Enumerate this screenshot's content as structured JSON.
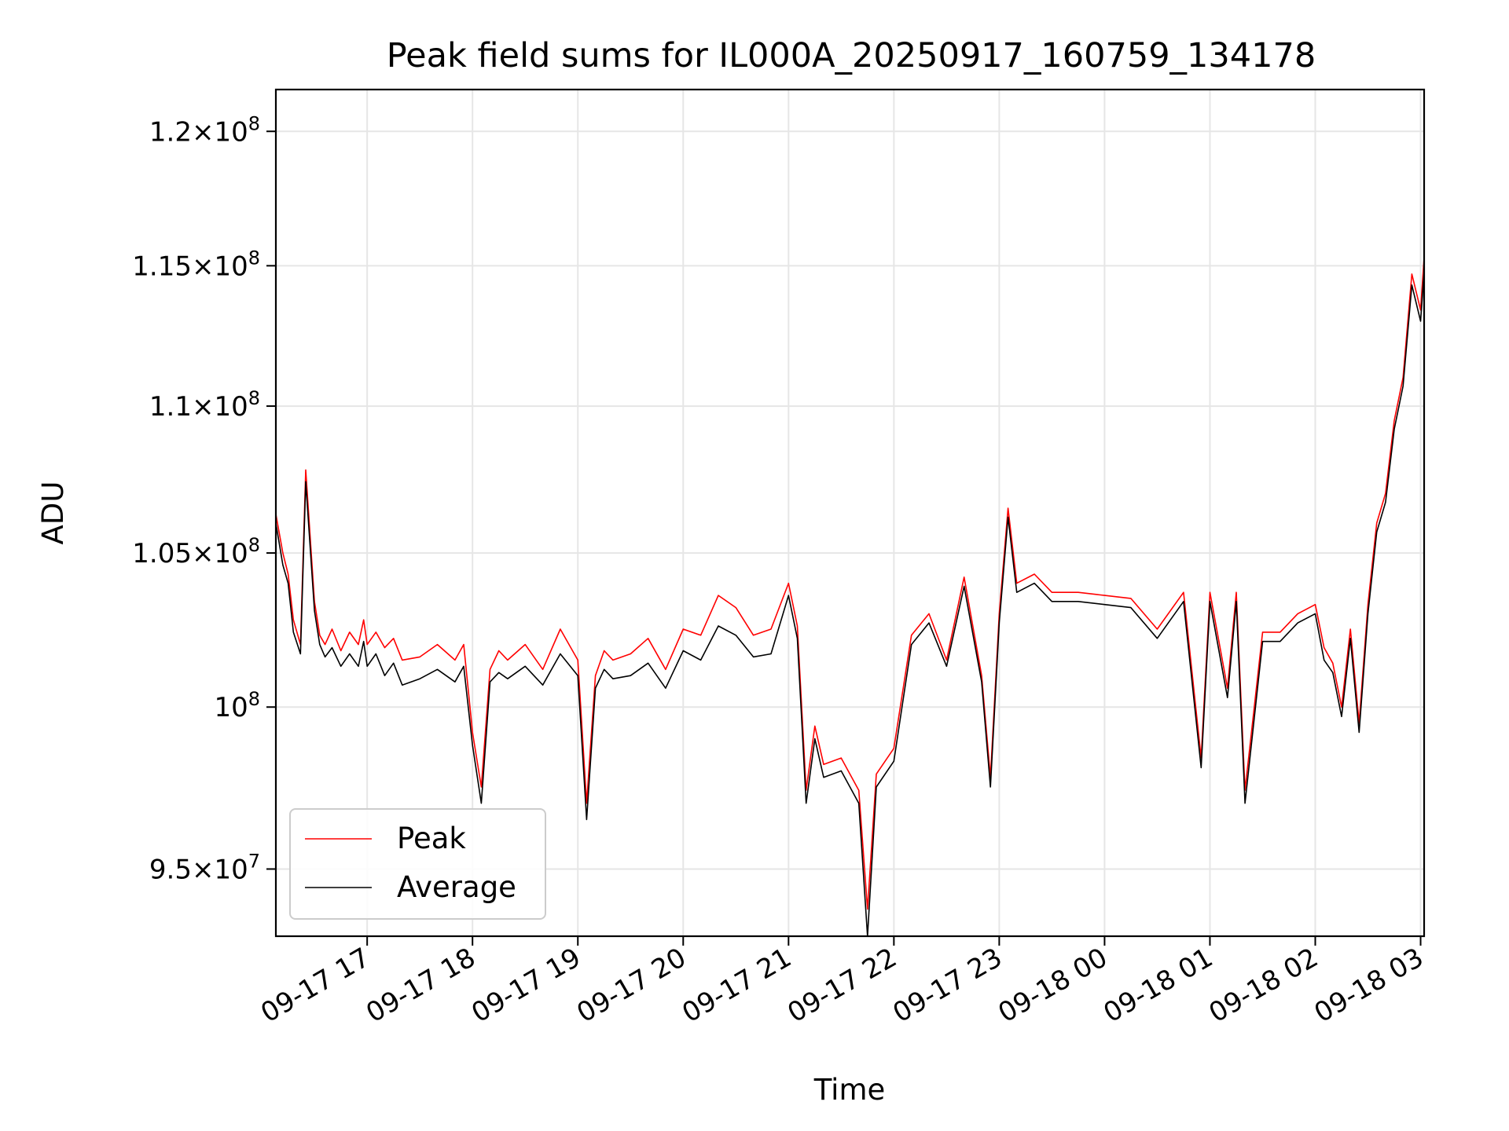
{
  "chart_data": {
    "type": "line",
    "title": "Peak field sums for IL000A_20250917_160759_134178",
    "xlabel": "Time",
    "ylabel": "ADU",
    "yscale": "log",
    "xlim": [
      "2025-09-17 16:08",
      "2025-09-18 03:02"
    ],
    "ylim": [
      93000000,
      121600000
    ],
    "grid": true,
    "legend_position": "lower-left",
    "x_ticks": [
      {
        "t": "2025-09-17 17:00",
        "label": "09-17 17"
      },
      {
        "t": "2025-09-17 18:00",
        "label": "09-17 18"
      },
      {
        "t": "2025-09-17 19:00",
        "label": "09-17 19"
      },
      {
        "t": "2025-09-17 20:00",
        "label": "09-17 20"
      },
      {
        "t": "2025-09-17 21:00",
        "label": "09-17 21"
      },
      {
        "t": "2025-09-17 22:00",
        "label": "09-17 22"
      },
      {
        "t": "2025-09-17 23:00",
        "label": "09-17 23"
      },
      {
        "t": "2025-09-18 00:00",
        "label": "09-18 00"
      },
      {
        "t": "2025-09-18 01:00",
        "label": "09-18 01"
      },
      {
        "t": "2025-09-18 02:00",
        "label": "09-18 02"
      },
      {
        "t": "2025-09-18 03:00",
        "label": "09-18 03"
      }
    ],
    "y_ticks": [
      {
        "value": 95000000,
        "mant": "9.5",
        "exp": "7"
      },
      {
        "value": 100000000,
        "mant": "",
        "exp": "8"
      },
      {
        "value": 105000000,
        "mant": "1.05",
        "exp": "8"
      },
      {
        "value": 110000000,
        "mant": "1.1",
        "exp": "8"
      },
      {
        "value": 115000000,
        "mant": "1.15",
        "exp": "8"
      },
      {
        "value": 120000000,
        "mant": "1.2",
        "exp": "8"
      }
    ],
    "series": [
      {
        "name": "Peak",
        "color": "#ff0000",
        "x": [
          "2025-09-17 16:08",
          "2025-09-17 16:12",
          "2025-09-17 16:15",
          "2025-09-17 16:18",
          "2025-09-17 16:22",
          "2025-09-17 16:25",
          "2025-09-17 16:30",
          "2025-09-17 16:33",
          "2025-09-17 16:36",
          "2025-09-17 16:40",
          "2025-09-17 16:45",
          "2025-09-17 16:50",
          "2025-09-17 16:55",
          "2025-09-17 16:58",
          "2025-09-17 17:00",
          "2025-09-17 17:05",
          "2025-09-17 17:10",
          "2025-09-17 17:15",
          "2025-09-17 17:20",
          "2025-09-17 17:30",
          "2025-09-17 17:40",
          "2025-09-17 17:50",
          "2025-09-17 17:55",
          "2025-09-17 18:00",
          "2025-09-17 18:05",
          "2025-09-17 18:10",
          "2025-09-17 18:15",
          "2025-09-17 18:20",
          "2025-09-17 18:30",
          "2025-09-17 18:40",
          "2025-09-17 18:50",
          "2025-09-17 19:00",
          "2025-09-17 19:05",
          "2025-09-17 19:10",
          "2025-09-17 19:15",
          "2025-09-17 19:20",
          "2025-09-17 19:30",
          "2025-09-17 19:40",
          "2025-09-17 19:50",
          "2025-09-17 20:00",
          "2025-09-17 20:10",
          "2025-09-17 20:20",
          "2025-09-17 20:30",
          "2025-09-17 20:40",
          "2025-09-17 20:50",
          "2025-09-17 21:00",
          "2025-09-17 21:05",
          "2025-09-17 21:10",
          "2025-09-17 21:15",
          "2025-09-17 21:20",
          "2025-09-17 21:30",
          "2025-09-17 21:40",
          "2025-09-17 21:45",
          "2025-09-17 21:50",
          "2025-09-17 22:00",
          "2025-09-17 22:10",
          "2025-09-17 22:20",
          "2025-09-17 22:30",
          "2025-09-17 22:40",
          "2025-09-17 22:50",
          "2025-09-17 22:55",
          "2025-09-17 23:00",
          "2025-09-17 23:05",
          "2025-09-17 23:10",
          "2025-09-17 23:20",
          "2025-09-17 23:30",
          "2025-09-17 23:45",
          "2025-09-18 00:00",
          "2025-09-18 00:15",
          "2025-09-18 00:30",
          "2025-09-18 00:45",
          "2025-09-18 00:55",
          "2025-09-18 01:00",
          "2025-09-18 01:10",
          "2025-09-18 01:15",
          "2025-09-18 01:20",
          "2025-09-18 01:30",
          "2025-09-18 01:40",
          "2025-09-18 01:50",
          "2025-09-18 02:00",
          "2025-09-18 02:05",
          "2025-09-18 02:10",
          "2025-09-18 02:15",
          "2025-09-18 02:20",
          "2025-09-18 02:25",
          "2025-09-18 02:30",
          "2025-09-18 02:35",
          "2025-09-18 02:40",
          "2025-09-18 02:45",
          "2025-09-18 02:50",
          "2025-09-18 02:55",
          "2025-09-18 03:00",
          "2025-09-18 03:02"
        ],
        "values": [
          106300000,
          105000000,
          104300000,
          102800000,
          102000000,
          107800000,
          103400000,
          102300000,
          102000000,
          102500000,
          101800000,
          102400000,
          102000000,
          102800000,
          102000000,
          102400000,
          101900000,
          102200000,
          101500000,
          101600000,
          102000000,
          101500000,
          102000000,
          99200000,
          97500000,
          101200000,
          101800000,
          101500000,
          102000000,
          101200000,
          102500000,
          101500000,
          97000000,
          101000000,
          101800000,
          101500000,
          101700000,
          102200000,
          101200000,
          102500000,
          102300000,
          103600000,
          103200000,
          102300000,
          102500000,
          104000000,
          102600000,
          97400000,
          99400000,
          98200000,
          98400000,
          97400000,
          93800000,
          97900000,
          98700000,
          102300000,
          103000000,
          101500000,
          104200000,
          101000000,
          97800000,
          103000000,
          106500000,
          104000000,
          104300000,
          103700000,
          103700000,
          103600000,
          103500000,
          102500000,
          103700000,
          98400000,
          103700000,
          100600000,
          103700000,
          97400000,
          102400000,
          102400000,
          103000000,
          103300000,
          101900000,
          101400000,
          100000000,
          102500000,
          99500000,
          103300000,
          106000000,
          107000000,
          109500000,
          111000000,
          114700000,
          113400000,
          115300000
        ]
      },
      {
        "name": "Average",
        "color": "#000000",
        "x": [
          "2025-09-17 16:08",
          "2025-09-17 16:12",
          "2025-09-17 16:15",
          "2025-09-17 16:18",
          "2025-09-17 16:22",
          "2025-09-17 16:25",
          "2025-09-17 16:30",
          "2025-09-17 16:33",
          "2025-09-17 16:36",
          "2025-09-17 16:40",
          "2025-09-17 16:45",
          "2025-09-17 16:50",
          "2025-09-17 16:55",
          "2025-09-17 16:58",
          "2025-09-17 17:00",
          "2025-09-17 17:05",
          "2025-09-17 17:10",
          "2025-09-17 17:15",
          "2025-09-17 17:20",
          "2025-09-17 17:30",
          "2025-09-17 17:40",
          "2025-09-17 17:50",
          "2025-09-17 17:55",
          "2025-09-17 18:00",
          "2025-09-17 18:05",
          "2025-09-17 18:10",
          "2025-09-17 18:15",
          "2025-09-17 18:20",
          "2025-09-17 18:30",
          "2025-09-17 18:40",
          "2025-09-17 18:50",
          "2025-09-17 19:00",
          "2025-09-17 19:05",
          "2025-09-17 19:10",
          "2025-09-17 19:15",
          "2025-09-17 19:20",
          "2025-09-17 19:30",
          "2025-09-17 19:40",
          "2025-09-17 19:50",
          "2025-09-17 20:00",
          "2025-09-17 20:10",
          "2025-09-17 20:20",
          "2025-09-17 20:30",
          "2025-09-17 20:40",
          "2025-09-17 20:50",
          "2025-09-17 21:00",
          "2025-09-17 21:05",
          "2025-09-17 21:10",
          "2025-09-17 21:15",
          "2025-09-17 21:20",
          "2025-09-17 21:30",
          "2025-09-17 21:40",
          "2025-09-17 21:45",
          "2025-09-17 21:50",
          "2025-09-17 22:00",
          "2025-09-17 22:10",
          "2025-09-17 22:20",
          "2025-09-17 22:30",
          "2025-09-17 22:40",
          "2025-09-17 22:50",
          "2025-09-17 22:55",
          "2025-09-17 23:00",
          "2025-09-17 23:05",
          "2025-09-17 23:10",
          "2025-09-17 23:20",
          "2025-09-17 23:30",
          "2025-09-17 23:45",
          "2025-09-18 00:00",
          "2025-09-18 00:15",
          "2025-09-18 00:30",
          "2025-09-18 00:45",
          "2025-09-18 00:55",
          "2025-09-18 01:00",
          "2025-09-18 01:10",
          "2025-09-18 01:15",
          "2025-09-18 01:20",
          "2025-09-18 01:30",
          "2025-09-18 01:40",
          "2025-09-18 01:50",
          "2025-09-18 02:00",
          "2025-09-18 02:05",
          "2025-09-18 02:10",
          "2025-09-18 02:15",
          "2025-09-18 02:20",
          "2025-09-18 02:25",
          "2025-09-18 02:30",
          "2025-09-18 02:35",
          "2025-09-18 02:40",
          "2025-09-18 02:45",
          "2025-09-18 02:50",
          "2025-09-18 02:55",
          "2025-09-18 03:00",
          "2025-09-18 03:02"
        ],
        "values": [
          106000000,
          104600000,
          104000000,
          102400000,
          101700000,
          107400000,
          103100000,
          102000000,
          101600000,
          101900000,
          101300000,
          101700000,
          101300000,
          102100000,
          101300000,
          101700000,
          101000000,
          101400000,
          100700000,
          100900000,
          101200000,
          100800000,
          101300000,
          98800000,
          97000000,
          100800000,
          101100000,
          100900000,
          101300000,
          100700000,
          101700000,
          101000000,
          96500000,
          100600000,
          101200000,
          100900000,
          101000000,
          101400000,
          100600000,
          101800000,
          101500000,
          102600000,
          102300000,
          101600000,
          101700000,
          103600000,
          102200000,
          97000000,
          99000000,
          97800000,
          98000000,
          97000000,
          93000000,
          97500000,
          98300000,
          102000000,
          102700000,
          101300000,
          103900000,
          100800000,
          97500000,
          102700000,
          106200000,
          103700000,
          104000000,
          103400000,
          103400000,
          103300000,
          103200000,
          102200000,
          103400000,
          98100000,
          103400000,
          100300000,
          103400000,
          97000000,
          102100000,
          102100000,
          102700000,
          103000000,
          101500000,
          101100000,
          99700000,
          102200000,
          99200000,
          103000000,
          105700000,
          106700000,
          109200000,
          110700000,
          114300000,
          113000000,
          114800000
        ]
      }
    ]
  }
}
